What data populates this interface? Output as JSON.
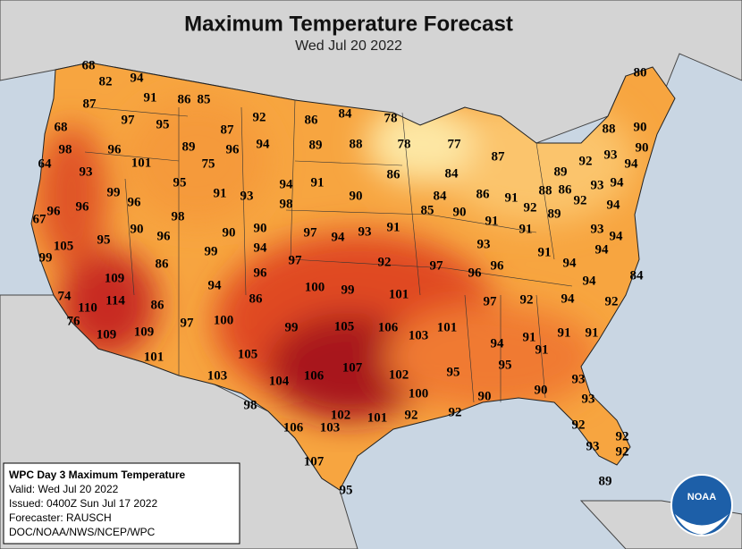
{
  "header": {
    "title": "Maximum Temperature Forecast",
    "date": "Wed Jul 20 2022"
  },
  "temperatures": [
    68,
    82,
    94,
    91,
    86,
    85,
    87,
    97,
    95,
    92,
    86,
    84,
    78,
    80,
    88,
    90,
    68,
    87,
    89,
    88,
    78,
    77,
    90,
    98,
    96,
    89,
    96,
    94,
    87,
    92,
    93,
    94,
    64,
    101,
    75,
    86,
    84,
    89,
    93,
    95,
    94,
    91,
    84,
    86,
    91,
    88,
    86,
    92,
    93,
    94,
    99,
    96,
    91,
    93,
    98,
    90,
    85,
    90,
    92,
    89,
    96,
    96,
    67,
    98,
    94,
    91,
    90,
    96,
    90,
    90,
    97,
    94,
    93,
    91,
    91,
    93,
    94,
    105,
    95,
    99,
    94,
    93,
    91,
    94,
    99,
    86,
    97,
    92,
    97,
    96,
    96,
    94,
    109,
    96,
    94,
    84,
    94,
    100,
    99,
    101,
    74,
    114,
    86,
    97,
    92,
    94,
    92,
    110,
    86,
    76,
    97,
    100,
    99,
    105,
    106,
    103,
    101,
    109,
    109,
    94,
    91,
    91,
    91,
    91,
    101,
    105,
    95,
    107,
    95,
    103,
    104,
    106,
    102,
    93,
    100,
    90,
    90,
    93,
    98,
    102,
    101,
    92,
    92,
    92,
    106,
    103,
    92,
    93,
    92,
    107,
    89,
    95
  ],
  "info_box": {
    "lines": [
      "WPC Day 3 Maximum Temperature",
      "Valid: Wed Jul 20 2022",
      "Issued: 0400Z Sun Jul 17 2022",
      "Forecaster: RAUSCH",
      "DOC/NOAA/NWS/NCEP/WPC"
    ]
  },
  "logo": {
    "text": "NOAA"
  }
}
